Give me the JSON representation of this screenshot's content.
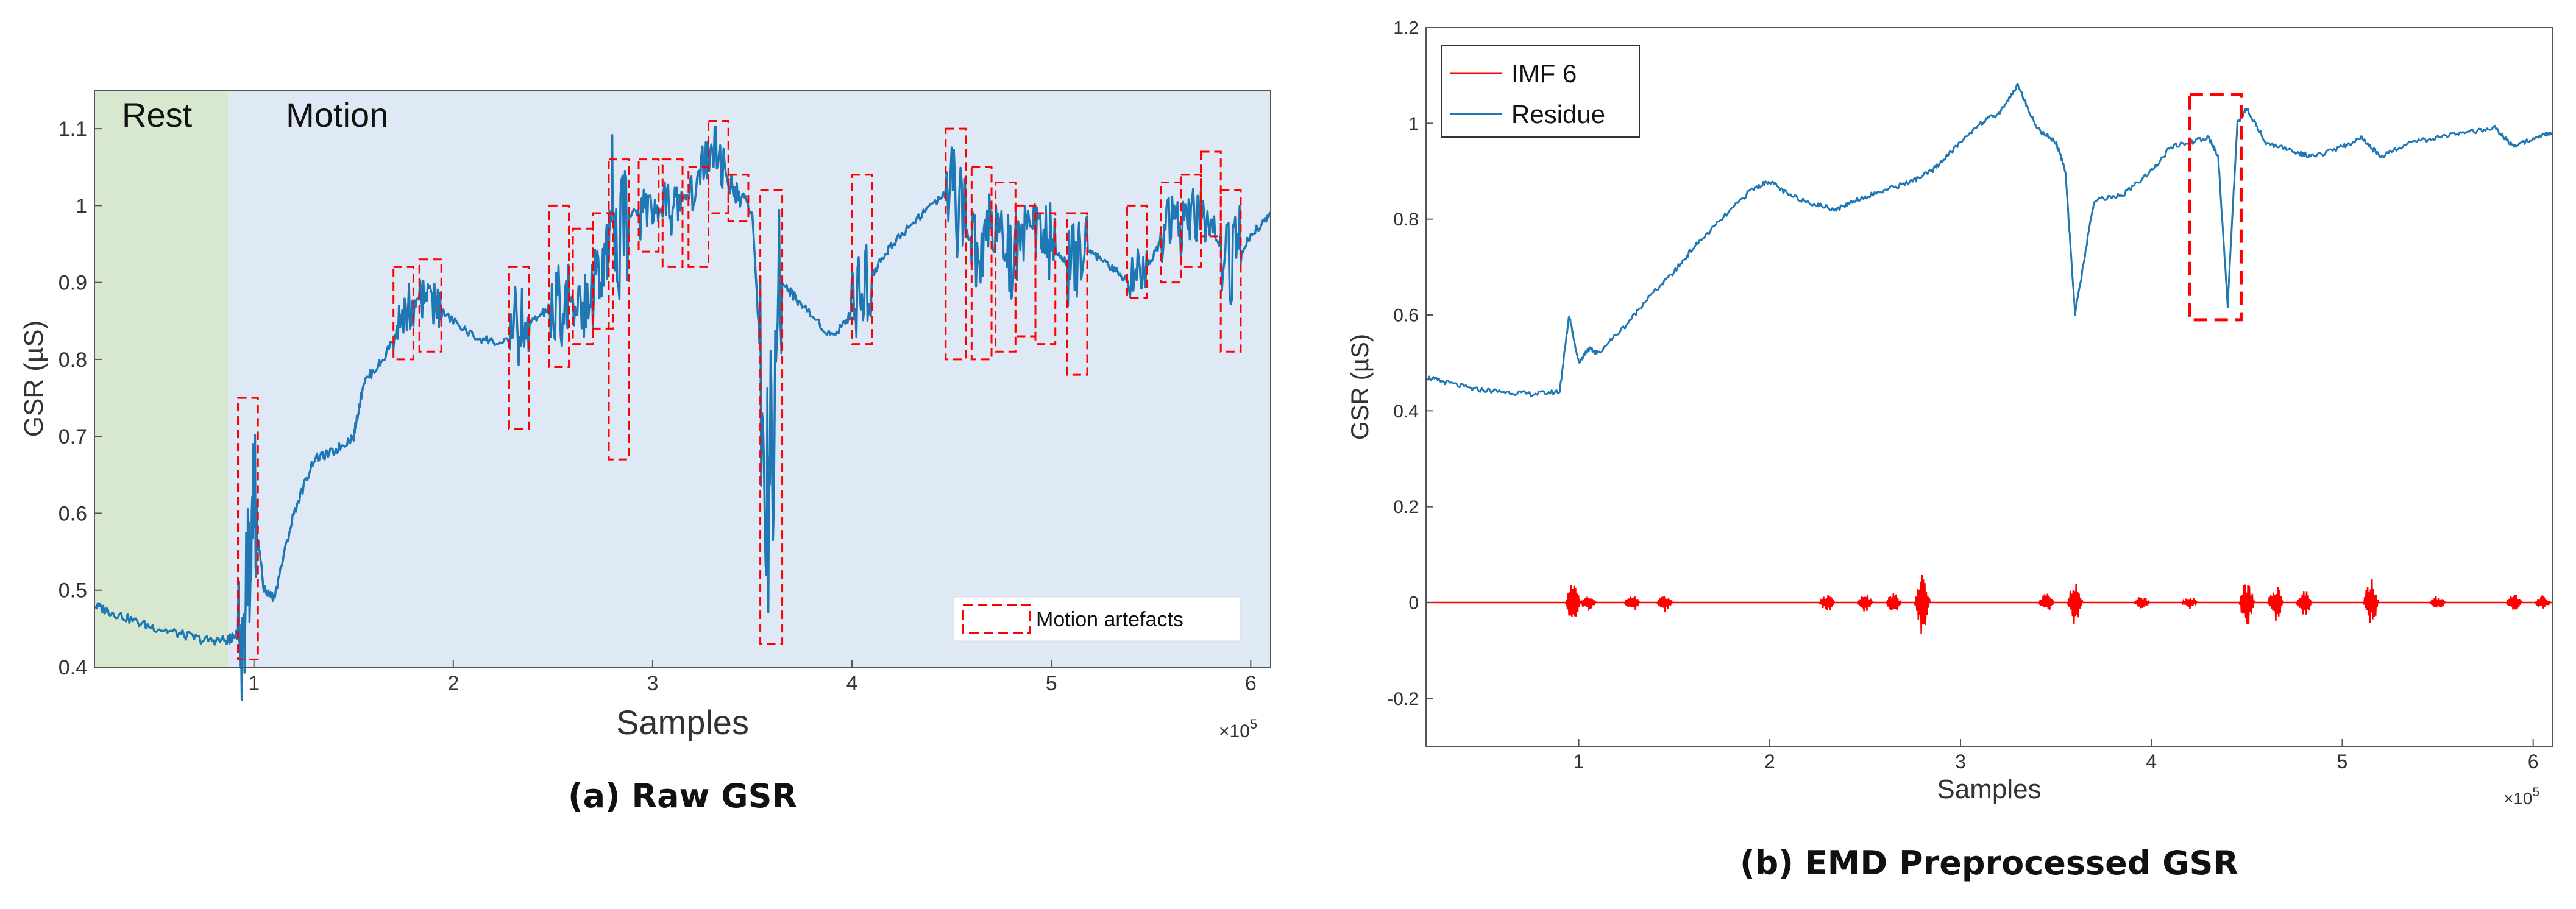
{
  "chart_data": [
    {
      "type": "line",
      "title": "",
      "caption": "(a)  Raw GSR",
      "xlabel": "Samples",
      "ylabel": "GSR (µS)",
      "x_multiplier": "×10",
      "x_exponent": "5",
      "xlim": [
        0.2,
        6.1
      ],
      "ylim": [
        0.4,
        1.15
      ],
      "xticks": [
        1,
        2,
        3,
        4,
        5,
        6
      ],
      "xtick_labels": [
        "1",
        "2",
        "3",
        "4",
        "5",
        "6"
      ],
      "yticks": [
        0.4,
        0.5,
        0.6,
        0.7,
        0.8,
        0.9,
        1.0,
        1.1
      ],
      "ytick_labels": [
        "0.4",
        "0.5",
        "0.6",
        "0.7",
        "0.8",
        "0.9",
        "1",
        "1.1"
      ],
      "regions": [
        {
          "label": "Rest",
          "x_start": 0.2,
          "x_end": 0.87,
          "color": "#d8e8cf"
        },
        {
          "label": "Motion",
          "x_start": 0.87,
          "x_end": 6.1,
          "color": "#dfe9f5"
        }
      ],
      "legend": {
        "label": "Motion artefacts",
        "placement": "bottom-right"
      },
      "series": [
        {
          "name": "GSR",
          "color": "#1f77b4",
          "x": [
            0.2,
            0.3,
            0.45,
            0.6,
            0.75,
            0.87,
            0.9,
            0.95,
            1.0,
            1.05,
            1.1,
            1.2,
            1.3,
            1.4,
            1.5,
            1.55,
            1.65,
            1.75,
            1.85,
            1.95,
            2.1,
            2.25,
            2.35,
            2.45,
            2.55,
            2.65,
            2.75,
            2.8,
            2.9,
            3.0,
            3.1,
            3.2,
            3.3,
            3.4,
            3.5,
            3.58,
            3.65,
            3.75,
            3.9,
            4.0,
            4.1,
            4.2,
            4.35,
            4.5,
            4.6,
            4.7,
            4.8,
            4.9,
            5.0,
            5.1,
            5.2,
            5.3,
            5.4,
            5.5,
            5.6,
            5.7,
            5.8,
            5.9,
            6.0,
            6.1
          ],
          "y": [
            0.48,
            0.47,
            0.455,
            0.445,
            0.435,
            0.435,
            0.44,
            0.45,
            0.62,
            0.5,
            0.49,
            0.6,
            0.67,
            0.68,
            0.7,
            0.77,
            0.8,
            0.86,
            0.88,
            0.86,
            0.83,
            0.82,
            0.84,
            0.86,
            0.88,
            0.87,
            0.92,
            0.96,
            0.99,
            1.0,
            0.99,
            1.02,
            1.08,
            1.02,
            0.99,
            0.62,
            0.9,
            0.87,
            0.83,
            0.86,
            0.91,
            0.95,
            0.99,
            1.02,
            0.95,
            0.94,
            0.93,
            0.97,
            0.95,
            0.92,
            0.94,
            0.92,
            0.9,
            0.93,
            0.98,
            0.99,
            0.97,
            0.92,
            0.96,
            0.99
          ]
        }
      ],
      "artefact_boxes": [
        {
          "x": [
            0.92,
            1.02
          ],
          "y": [
            0.41,
            0.75
          ]
        },
        {
          "x": [
            1.7,
            1.8
          ],
          "y": [
            0.8,
            0.92
          ]
        },
        {
          "x": [
            1.83,
            1.94
          ],
          "y": [
            0.81,
            0.93
          ]
        },
        {
          "x": [
            2.28,
            2.38
          ],
          "y": [
            0.71,
            0.92
          ]
        },
        {
          "x": [
            2.48,
            2.58
          ],
          "y": [
            0.79,
            1.0
          ]
        },
        {
          "x": [
            2.6,
            2.7
          ],
          "y": [
            0.82,
            0.97
          ]
        },
        {
          "x": [
            2.7,
            2.8
          ],
          "y": [
            0.84,
            0.99
          ]
        },
        {
          "x": [
            2.78,
            2.88
          ],
          "y": [
            0.67,
            1.06
          ]
        },
        {
          "x": [
            2.93,
            3.03
          ],
          "y": [
            0.94,
            1.06
          ]
        },
        {
          "x": [
            3.05,
            3.15
          ],
          "y": [
            0.92,
            1.06
          ]
        },
        {
          "x": [
            3.18,
            3.28
          ],
          "y": [
            0.92,
            1.05
          ]
        },
        {
          "x": [
            3.28,
            3.38
          ],
          "y": [
            0.99,
            1.11
          ]
        },
        {
          "x": [
            3.38,
            3.48
          ],
          "y": [
            0.98,
            1.04
          ]
        },
        {
          "x": [
            3.54,
            3.65
          ],
          "y": [
            0.43,
            1.02
          ]
        },
        {
          "x": [
            4.0,
            4.1
          ],
          "y": [
            0.82,
            1.04
          ]
        },
        {
          "x": [
            4.47,
            4.57
          ],
          "y": [
            0.8,
            1.1
          ]
        },
        {
          "x": [
            4.6,
            4.7
          ],
          "y": [
            0.8,
            1.05
          ]
        },
        {
          "x": [
            4.72,
            4.82
          ],
          "y": [
            0.81,
            1.03
          ]
        },
        {
          "x": [
            4.82,
            4.92
          ],
          "y": [
            0.83,
            1.0
          ]
        },
        {
          "x": [
            4.92,
            5.02
          ],
          "y": [
            0.82,
            0.99
          ]
        },
        {
          "x": [
            5.08,
            5.18
          ],
          "y": [
            0.78,
            0.99
          ]
        },
        {
          "x": [
            5.38,
            5.48
          ],
          "y": [
            0.88,
            1.0
          ]
        },
        {
          "x": [
            5.55,
            5.65
          ],
          "y": [
            0.9,
            1.03
          ]
        },
        {
          "x": [
            5.65,
            5.75
          ],
          "y": [
            0.92,
            1.04
          ]
        },
        {
          "x": [
            5.75,
            5.85
          ],
          "y": [
            0.96,
            1.07
          ]
        },
        {
          "x": [
            5.85,
            5.95
          ],
          "y": [
            0.81,
            1.02
          ]
        }
      ]
    },
    {
      "type": "line",
      "title": "",
      "caption": "(b) EMD Preprocessed GSR",
      "xlabel": "Samples",
      "ylabel": "GSR (µS)",
      "x_multiplier": "×10",
      "x_exponent": "5",
      "xlim": [
        0.2,
        6.1
      ],
      "ylim": [
        -0.3,
        1.2
      ],
      "xticks": [
        1,
        2,
        3,
        4,
        5,
        6
      ],
      "xtick_labels": [
        "1",
        "2",
        "3",
        "4",
        "5",
        "6"
      ],
      "yticks": [
        -0.2,
        0.0,
        0.2,
        0.4,
        0.6,
        0.8,
        1.0,
        1.2
      ],
      "ytick_labels": [
        "-0.2",
        "0",
        "0.2",
        "0.4",
        "0.6",
        "0.8",
        "1",
        "1.2"
      ],
      "legend": {
        "placement": "top-left"
      },
      "series": [
        {
          "name": "IMF 6",
          "color": "#ff0000",
          "x": [
            0.2,
            6.1
          ],
          "y": [
            0.0,
            0.0
          ],
          "bursts": [
            {
              "x": 0.97,
              "amp": 0.04
            },
            {
              "x": 1.05,
              "amp": 0.02
            },
            {
              "x": 1.28,
              "amp": 0.02
            },
            {
              "x": 1.45,
              "amp": 0.02
            },
            {
              "x": 2.3,
              "amp": 0.02
            },
            {
              "x": 2.5,
              "amp": 0.02
            },
            {
              "x": 2.65,
              "amp": 0.02
            },
            {
              "x": 2.8,
              "amp": 0.07
            },
            {
              "x": 3.45,
              "amp": 0.02
            },
            {
              "x": 3.6,
              "amp": 0.05
            },
            {
              "x": 3.95,
              "amp": 0.015
            },
            {
              "x": 4.2,
              "amp": 0.015
            },
            {
              "x": 4.5,
              "amp": 0.05
            },
            {
              "x": 4.65,
              "amp": 0.04
            },
            {
              "x": 4.8,
              "amp": 0.03
            },
            {
              "x": 5.15,
              "amp": 0.05
            },
            {
              "x": 5.5,
              "amp": 0.015
            },
            {
              "x": 5.9,
              "amp": 0.02
            },
            {
              "x": 6.05,
              "amp": 0.015
            }
          ]
        },
        {
          "name": "Residue",
          "color": "#1f77b4",
          "x": [
            0.2,
            0.3,
            0.45,
            0.6,
            0.75,
            0.9,
            0.95,
            1.0,
            1.05,
            1.1,
            1.25,
            1.35,
            1.5,
            1.6,
            1.75,
            1.9,
            2.0,
            2.1,
            2.25,
            2.35,
            2.45,
            2.6,
            2.75,
            2.85,
            2.95,
            3.1,
            3.2,
            3.3,
            3.4,
            3.5,
            3.55,
            3.6,
            3.7,
            3.85,
            4.0,
            4.1,
            4.2,
            4.3,
            4.35,
            4.4,
            4.45,
            4.5,
            4.6,
            4.75,
            4.85,
            5.0,
            5.1,
            5.2,
            5.35,
            5.5,
            5.65,
            5.8,
            5.9,
            6.0,
            6.1
          ],
          "y": [
            0.47,
            0.46,
            0.445,
            0.44,
            0.435,
            0.44,
            0.6,
            0.5,
            0.53,
            0.52,
            0.58,
            0.63,
            0.69,
            0.74,
            0.8,
            0.86,
            0.88,
            0.85,
            0.83,
            0.82,
            0.84,
            0.86,
            0.88,
            0.9,
            0.94,
            1.0,
            1.02,
            1.08,
            0.99,
            0.96,
            0.9,
            0.6,
            0.84,
            0.85,
            0.9,
            0.95,
            0.96,
            0.97,
            0.93,
            0.62,
            1.0,
            1.03,
            0.96,
            0.94,
            0.93,
            0.95,
            0.97,
            0.93,
            0.96,
            0.97,
            0.98,
            0.99,
            0.95,
            0.97,
            0.98
          ]
        }
      ],
      "artefact_boxes": [
        {
          "x": [
            4.2,
            4.47
          ],
          "y": [
            0.59,
            1.06
          ]
        }
      ]
    }
  ]
}
